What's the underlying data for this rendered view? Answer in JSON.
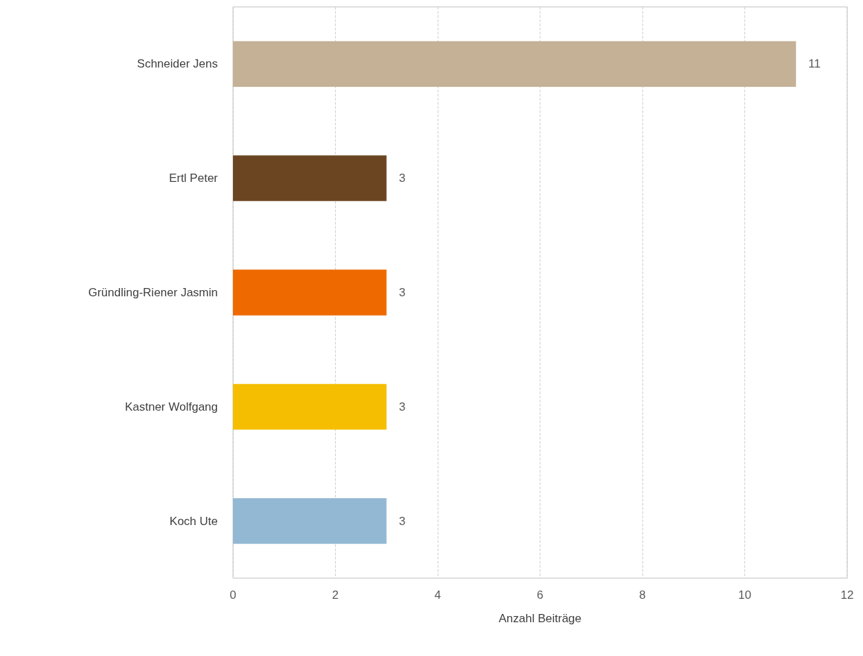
{
  "chart_data": {
    "type": "bar",
    "orientation": "horizontal",
    "xlabel": "Anzahl Beiträge",
    "categories": [
      "Schneider Jens",
      "Ertl Peter",
      "Gründling-Riener Jasmin",
      "Kastner Wolfgang",
      "Koch Ute"
    ],
    "values": [
      11,
      3,
      3,
      3,
      3
    ],
    "colors": [
      "#c4b196",
      "#6b4522",
      "#ee6a00",
      "#f5be00",
      "#93b8d3"
    ],
    "xlim": [
      0,
      12
    ],
    "xticks": [
      0,
      2,
      4,
      6,
      8,
      10,
      12
    ],
    "grid": "x",
    "data_labels": true
  }
}
